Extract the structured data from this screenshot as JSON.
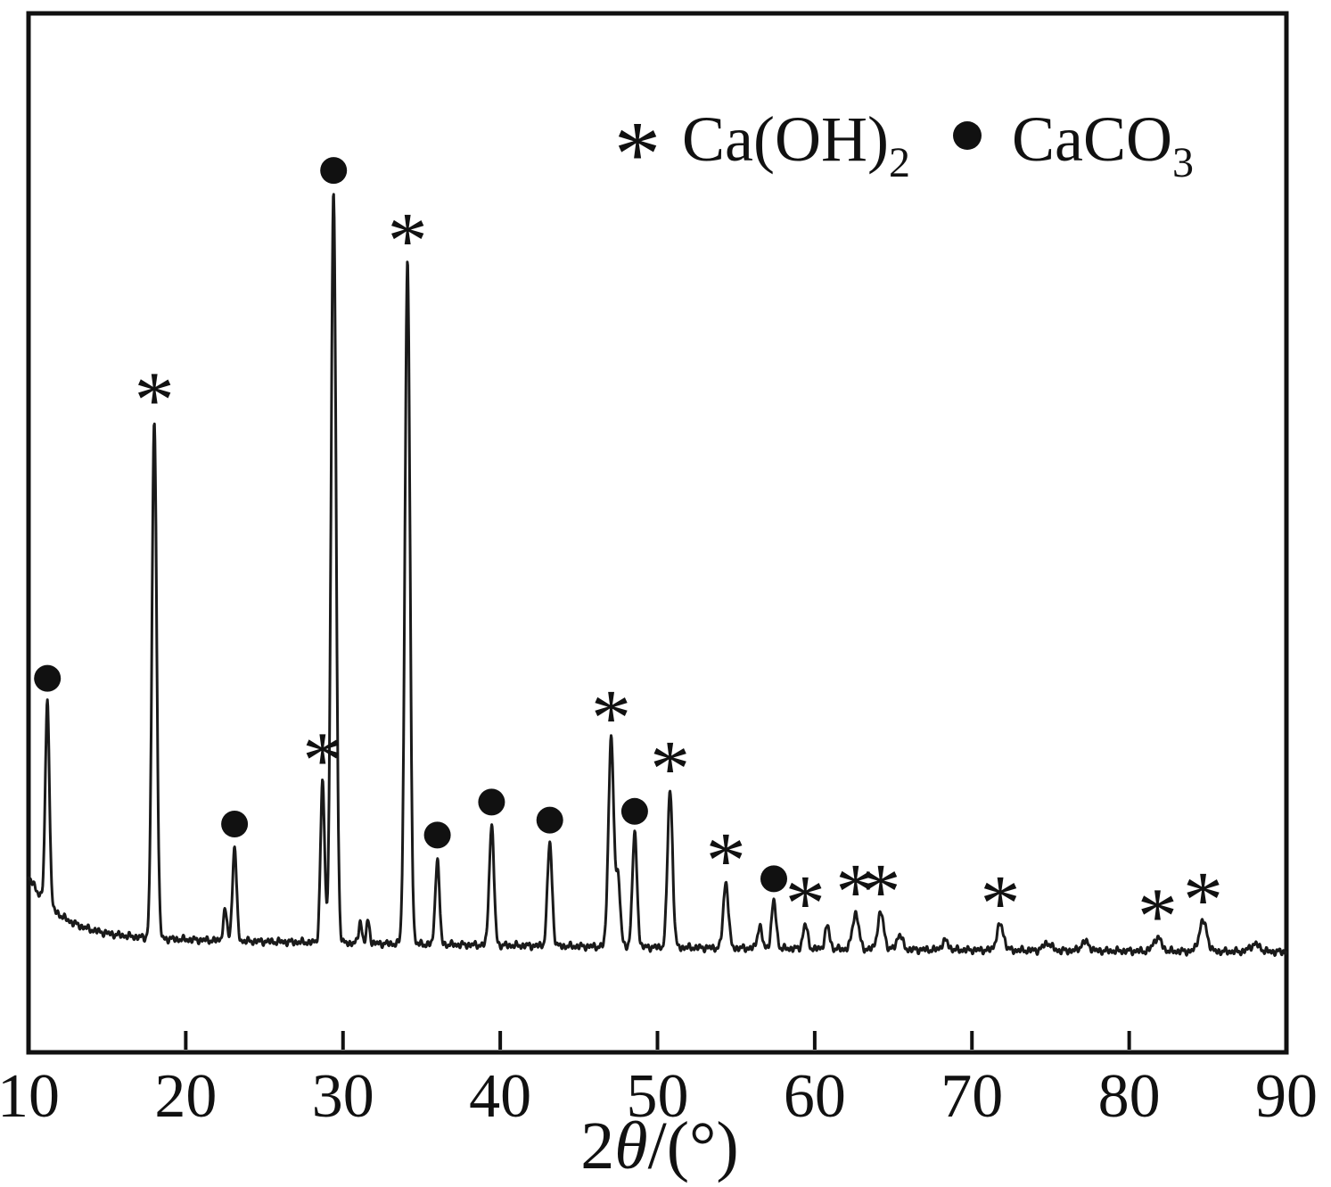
{
  "figure": {
    "description": "Powder XRD pattern with peaks assigned to Ca(OH)2 (asterisk) and CaCO3 (filled circle)"
  },
  "chart_data": {
    "type": "line",
    "title": "",
    "xlabel": "2θ/(°)",
    "xlabel_parts": {
      "prefix": "2",
      "symbol": "θ",
      "suffix": "/(°)"
    },
    "ylabel": "",
    "x_range": [
      10,
      90
    ],
    "x_ticks": [
      10,
      20,
      30,
      40,
      50,
      60,
      70,
      80,
      90
    ],
    "y_axis_shown": false,
    "grid": false,
    "line_color": "#1a1a1a",
    "frame_color": "#111111",
    "legend_position": "top-right-inside",
    "legend": [
      {
        "marker": "asterisk",
        "symbol": "*",
        "label": "CaOH2",
        "label_base": "Ca(OH)",
        "label_sub": "2"
      },
      {
        "marker": "dot",
        "symbol": "●",
        "label": "CaCO3",
        "label_base": "CaCO",
        "label_sub": "3"
      }
    ],
    "intensity_units": "arbitrary (strongest peak = 100)",
    "background": {
      "base": 1.1,
      "slow_amp": 2.5,
      "slow_decay": 45,
      "fast_amp": 8,
      "fast_decay": 2.0
    },
    "peaks": [
      {
        "two_theta": 11.2,
        "intensity": 27.0,
        "sigma": 0.13,
        "phase": "CaCO3",
        "marked": true
      },
      {
        "two_theta": 18.0,
        "intensity": 69.0,
        "sigma": 0.15,
        "phase": "CaOH2",
        "marked": true
      },
      {
        "two_theta": 22.5,
        "intensity": 4.0,
        "sigma": 0.12,
        "phase": "",
        "marked": false
      },
      {
        "two_theta": 23.1,
        "intensity": 12.5,
        "sigma": 0.13,
        "phase": "CaCO3",
        "marked": true
      },
      {
        "two_theta": 28.7,
        "intensity": 21.5,
        "sigma": 0.13,
        "phase": "CaOH2",
        "marked": true
      },
      {
        "two_theta": 29.4,
        "intensity": 100.0,
        "sigma": 0.16,
        "phase": "CaCO3",
        "marked": true
      },
      {
        "two_theta": 31.1,
        "intensity": 3.0,
        "sigma": 0.1,
        "phase": "",
        "marked": false
      },
      {
        "two_theta": 31.6,
        "intensity": 3.0,
        "sigma": 0.1,
        "phase": "",
        "marked": false
      },
      {
        "two_theta": 34.1,
        "intensity": 91.0,
        "sigma": 0.16,
        "phase": "CaOH2",
        "marked": true
      },
      {
        "two_theta": 36.0,
        "intensity": 11.5,
        "sigma": 0.13,
        "phase": "CaCO3",
        "marked": true
      },
      {
        "two_theta": 39.45,
        "intensity": 16.0,
        "sigma": 0.15,
        "phase": "CaCO3",
        "marked": true
      },
      {
        "two_theta": 43.15,
        "intensity": 13.7,
        "sigma": 0.15,
        "phase": "CaCO3",
        "marked": true
      },
      {
        "two_theta": 47.05,
        "intensity": 27.7,
        "sigma": 0.17,
        "phase": "CaOH2",
        "marked": true
      },
      {
        "two_theta": 47.5,
        "intensity": 9.0,
        "sigma": 0.14,
        "phase": "",
        "marked": false
      },
      {
        "two_theta": 48.55,
        "intensity": 15.0,
        "sigma": 0.15,
        "phase": "CaCO3",
        "marked": true
      },
      {
        "two_theta": 50.8,
        "intensity": 21.0,
        "sigma": 0.16,
        "phase": "CaOH2",
        "marked": true
      },
      {
        "two_theta": 54.35,
        "intensity": 8.8,
        "sigma": 0.16,
        "phase": "CaOH2",
        "marked": true
      },
      {
        "two_theta": 56.5,
        "intensity": 3.0,
        "sigma": 0.14,
        "phase": "",
        "marked": false
      },
      {
        "two_theta": 57.4,
        "intensity": 6.2,
        "sigma": 0.15,
        "phase": "CaCO3",
        "marked": true
      },
      {
        "two_theta": 59.4,
        "intensity": 3.2,
        "sigma": 0.15,
        "phase": "CaOH2",
        "marked": true
      },
      {
        "two_theta": 60.8,
        "intensity": 3.0,
        "sigma": 0.15,
        "phase": "",
        "marked": false
      },
      {
        "two_theta": 62.6,
        "intensity": 4.8,
        "sigma": 0.2,
        "phase": "CaOH2",
        "marked": true
      },
      {
        "two_theta": 64.2,
        "intensity": 4.8,
        "sigma": 0.2,
        "phase": "CaOH2",
        "marked": true
      },
      {
        "two_theta": 65.4,
        "intensity": 2.0,
        "sigma": 0.18,
        "phase": "",
        "marked": false
      },
      {
        "two_theta": 68.3,
        "intensity": 1.2,
        "sigma": 0.2,
        "phase": "",
        "marked": false
      },
      {
        "two_theta": 71.8,
        "intensity": 3.4,
        "sigma": 0.22,
        "phase": "CaOH2",
        "marked": true
      },
      {
        "two_theta": 74.8,
        "intensity": 1.0,
        "sigma": 0.25,
        "phase": "",
        "marked": false
      },
      {
        "two_theta": 77.2,
        "intensity": 1.2,
        "sigma": 0.25,
        "phase": "",
        "marked": false
      },
      {
        "two_theta": 81.8,
        "intensity": 1.8,
        "sigma": 0.25,
        "phase": "CaOH2",
        "marked": true
      },
      {
        "two_theta": 84.7,
        "intensity": 4.0,
        "sigma": 0.25,
        "phase": "CaOH2",
        "marked": true
      },
      {
        "two_theta": 88.0,
        "intensity": 1.0,
        "sigma": 0.3,
        "phase": "",
        "marked": false
      }
    ]
  }
}
